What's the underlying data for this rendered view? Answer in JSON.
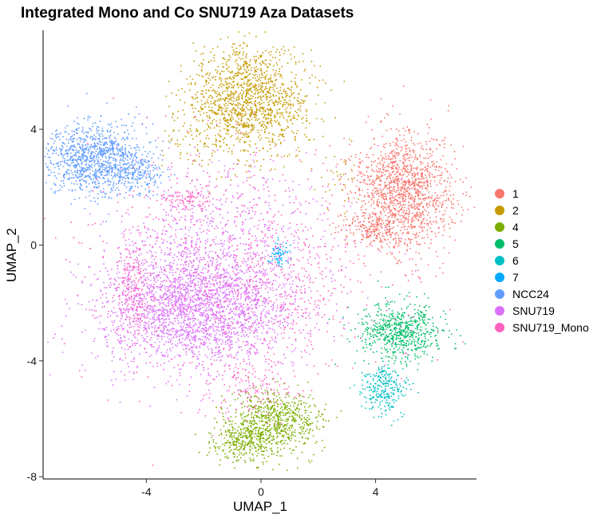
{
  "chart_data": {
    "type": "scatter",
    "title": "Integrated Mono and Co SNU719 Aza Datasets",
    "xlabel": "UMAP_1",
    "ylabel": "UMAP_2",
    "xlim": [
      -7.5,
      7.5
    ],
    "ylim": [
      -8.1,
      7.4
    ],
    "xticks": [
      -4,
      0,
      4
    ],
    "yticks": [
      -8,
      -4,
      0,
      4
    ],
    "xtick_labels": [
      "-4",
      "0",
      "4"
    ],
    "ytick_labels": [
      "-8",
      "-4",
      "0",
      "4"
    ],
    "grid": false,
    "legend_position": "right",
    "series": [
      {
        "name": "1",
        "color": "#F8766D",
        "clusters": [
          {
            "cx": 5.0,
            "cy": 1.8,
            "sx": 0.85,
            "sy": 1.05,
            "n": 1400
          },
          {
            "cx": 3.9,
            "cy": 0.6,
            "sx": 0.6,
            "sy": 0.35,
            "n": 200
          }
        ]
      },
      {
        "name": "2",
        "color": "#C49A00",
        "clusters": [
          {
            "cx": -0.5,
            "cy": 5.0,
            "sx": 1.05,
            "sy": 0.95,
            "n": 1400
          },
          {
            "cx": -2.5,
            "cy": 3.5,
            "sx": 0.4,
            "sy": 0.4,
            "n": 40
          },
          {
            "cx": 2.7,
            "cy": 2.2,
            "sx": 0.35,
            "sy": 0.5,
            "n": 30
          }
        ]
      },
      {
        "name": "4",
        "color": "#7CAE00",
        "clusters": [
          {
            "cx": 0.5,
            "cy": -6.1,
            "sx": 0.8,
            "sy": 0.55,
            "n": 700
          },
          {
            "cx": -0.6,
            "cy": -6.8,
            "sx": 0.55,
            "sy": 0.35,
            "n": 300
          }
        ]
      },
      {
        "name": "5",
        "color": "#00BE67",
        "clusters": [
          {
            "cx": 4.8,
            "cy": -3.0,
            "sx": 0.75,
            "sy": 0.5,
            "n": 650
          }
        ]
      },
      {
        "name": "6",
        "color": "#00BFC4",
        "clusters": [
          {
            "cx": 4.3,
            "cy": -5.0,
            "sx": 0.4,
            "sy": 0.45,
            "n": 260
          }
        ]
      },
      {
        "name": "7",
        "color": "#00A9FF",
        "clusters": [
          {
            "cx": 0.6,
            "cy": -0.3,
            "sx": 0.17,
            "sy": 0.22,
            "n": 70
          }
        ]
      },
      {
        "name": "NCC24",
        "color": "#619CFF",
        "clusters": [
          {
            "cx": -5.8,
            "cy": 3.0,
            "sx": 0.85,
            "sy": 0.6,
            "n": 1100
          },
          {
            "cx": -4.4,
            "cy": 2.4,
            "sx": 0.5,
            "sy": 0.4,
            "n": 200
          }
        ]
      },
      {
        "name": "SNU719",
        "color": "#DB72FB",
        "clusters": [
          {
            "cx": -2.3,
            "cy": -2.1,
            "sx": 1.7,
            "sy": 1.05,
            "n": 2600
          },
          {
            "cx": -1.3,
            "cy": 0.5,
            "sx": 1.8,
            "sy": 1.2,
            "n": 450
          }
        ]
      },
      {
        "name": "SNU719_Mono",
        "color": "#FF61C3",
        "clusters": [
          {
            "cx": -1.0,
            "cy": -0.8,
            "sx": 2.6,
            "sy": 2.0,
            "n": 800
          },
          {
            "cx": -4.5,
            "cy": -1.5,
            "sx": 0.3,
            "sy": 0.9,
            "n": 200
          },
          {
            "cx": -2.5,
            "cy": 1.6,
            "sx": 0.5,
            "sy": 0.2,
            "n": 100
          },
          {
            "cx": -0.3,
            "cy": -4.9,
            "sx": 0.7,
            "sy": 0.6,
            "n": 150
          },
          {
            "cx": 1.0,
            "cy": -1.3,
            "sx": 1.0,
            "sy": 1.0,
            "n": 120
          }
        ]
      }
    ]
  }
}
